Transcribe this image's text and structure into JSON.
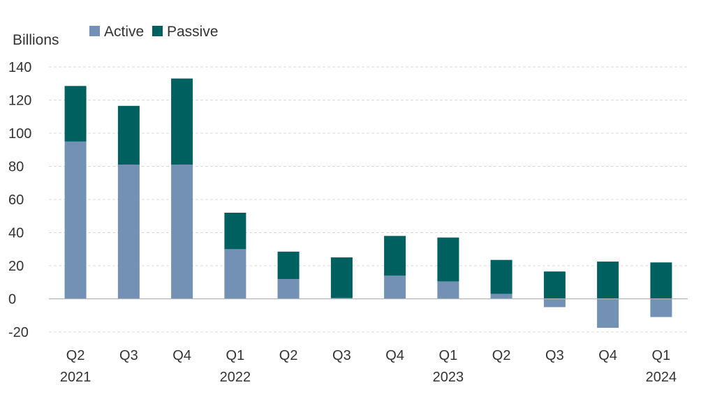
{
  "chart_data": {
    "type": "bar",
    "stacked": true,
    "ylabel": "Billions",
    "ylim": [
      -20,
      140
    ],
    "yticks": [
      140,
      120,
      100,
      80,
      60,
      40,
      20,
      0,
      -20
    ],
    "grid": true,
    "legend_position": "top-left",
    "categories": [
      {
        "quarter": "Q2",
        "year": "2021"
      },
      {
        "quarter": "Q3",
        "year": ""
      },
      {
        "quarter": "Q4",
        "year": ""
      },
      {
        "quarter": "Q1",
        "year": "2022"
      },
      {
        "quarter": "Q2",
        "year": ""
      },
      {
        "quarter": "Q3",
        "year": ""
      },
      {
        "quarter": "Q4",
        "year": ""
      },
      {
        "quarter": "Q1",
        "year": "2023"
      },
      {
        "quarter": "Q2",
        "year": ""
      },
      {
        "quarter": "Q3",
        "year": ""
      },
      {
        "quarter": "Q4",
        "year": ""
      },
      {
        "quarter": "Q1",
        "year": "2024"
      }
    ],
    "series": [
      {
        "name": "Active",
        "color": "#7391b4",
        "values": [
          95,
          81,
          81,
          30,
          12,
          0.5,
          14,
          10.5,
          3,
          -5,
          -17.5,
          -11
        ]
      },
      {
        "name": "Passive",
        "color": "#00605f",
        "values": [
          33.5,
          35.5,
          52,
          22,
          16.5,
          24.5,
          24,
          26.5,
          20.5,
          16.5,
          22.5,
          22
        ]
      }
    ]
  }
}
